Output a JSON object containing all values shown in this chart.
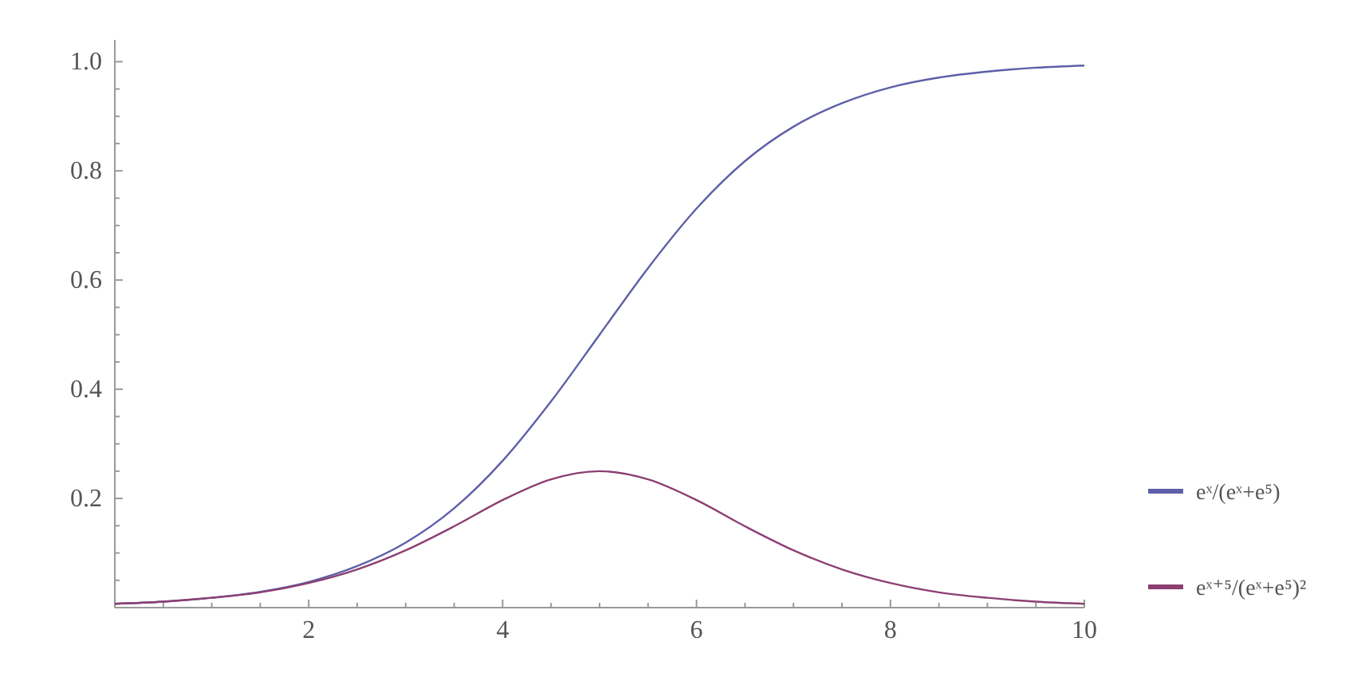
{
  "chart_data": {
    "type": "line",
    "x": [
      0,
      0.5,
      1,
      1.5,
      2,
      2.5,
      3,
      3.5,
      4,
      4.5,
      5,
      5.5,
      6,
      6.5,
      7,
      7.5,
      8,
      8.5,
      9,
      9.5,
      10
    ],
    "series": [
      {
        "name": "eˣ/(eˣ+e⁵)",
        "color": "#5e5fa8",
        "values": [
          0.007,
          0.011,
          0.018,
          0.029,
          0.047,
          0.076,
          0.119,
          0.182,
          0.269,
          0.378,
          0.5,
          0.622,
          0.731,
          0.818,
          0.881,
          0.924,
          0.953,
          0.971,
          0.982,
          0.989,
          0.993
        ]
      },
      {
        "name": "eˣ⁺⁵/(eˣ+e⁵)²",
        "color": "#8c3f72",
        "values": [
          0.007,
          0.011,
          0.018,
          0.028,
          0.045,
          0.07,
          0.105,
          0.149,
          0.197,
          0.235,
          0.25,
          0.235,
          0.197,
          0.149,
          0.105,
          0.07,
          0.045,
          0.028,
          0.018,
          0.011,
          0.007
        ]
      }
    ],
    "xlim": [
      0,
      10
    ],
    "ylim": [
      0,
      1.04
    ],
    "xticks": [
      {
        "value": 0.5,
        "label": null
      },
      {
        "value": 1,
        "label": null
      },
      {
        "value": 1.5,
        "label": null
      },
      2,
      {
        "value": 2.5,
        "label": null
      },
      {
        "value": 3,
        "label": null
      },
      {
        "value": 3.5,
        "label": null
      },
      4,
      {
        "value": 4.5,
        "label": null
      },
      {
        "value": 5,
        "label": null
      },
      {
        "value": 5.5,
        "label": null
      },
      6,
      {
        "value": 6.5,
        "label": null
      },
      {
        "value": 7,
        "label": null
      },
      {
        "value": 7.5,
        "label": null
      },
      8,
      {
        "value": 8.5,
        "label": null
      },
      {
        "value": 9,
        "label": null
      },
      {
        "value": 9.5,
        "label": null
      },
      10
    ],
    "yticks": [
      {
        "value": 0.05,
        "label": null
      },
      {
        "value": 0.1,
        "label": null
      },
      {
        "value": 0.15,
        "label": null
      },
      0.2,
      {
        "value": 0.25,
        "label": null
      },
      {
        "value": 0.3,
        "label": null
      },
      {
        "value": 0.35,
        "label": null
      },
      0.4,
      {
        "value": 0.45,
        "label": null
      },
      {
        "value": 0.5,
        "label": null
      },
      {
        "value": 0.55,
        "label": null
      },
      0.6,
      {
        "value": 0.65,
        "label": null
      },
      {
        "value": 0.7,
        "label": null
      },
      {
        "value": 0.75,
        "label": null
      },
      0.8,
      {
        "value": 0.85,
        "label": null
      },
      {
        "value": 0.9,
        "label": null
      },
      {
        "value": 0.95,
        "label": null
      },
      {
        "value": 1,
        "label": "1.0"
      }
    ],
    "legend": "right",
    "marker": "none",
    "line_style": "solid",
    "grid": false
  }
}
